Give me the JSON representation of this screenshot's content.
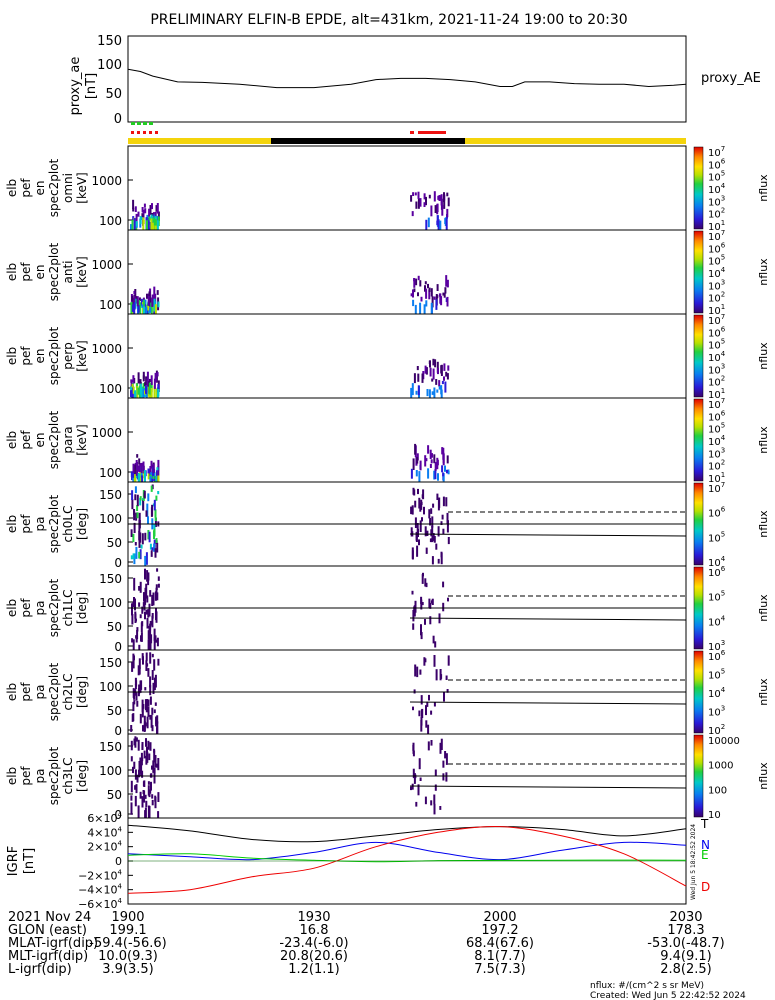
{
  "title": "PRELIMINARY ELFIN-B EPDE, alt=431km, 2021-11-24 19:00 to 20:30",
  "colors": {
    "trace": "#000000",
    "sci_zone_green": "#22cc22",
    "sci_zone_red": "#ee1111",
    "orbit_bar_yellow": "#f4d40c",
    "orbit_bar_black": "#000000",
    "bfield_T": "#000000",
    "bfield_N": "#0000ee",
    "bfield_E": "#00cc00",
    "bfield_D": "#ee0000"
  },
  "chart_data": [
    {
      "type": "line",
      "panel": "proxy_ae",
      "ylabel_lines": [
        "proxy_ae",
        "[nT]"
      ],
      "series_label": "proxy_AE",
      "ylim": [
        0,
        150
      ],
      "yticks": [
        "150",
        "100",
        "50",
        "0"
      ],
      "x_minutes": [
        0,
        2,
        4,
        8,
        12,
        18,
        24,
        30,
        36,
        40,
        44,
        48,
        52,
        56,
        60,
        62,
        64,
        68,
        72,
        76,
        80,
        84,
        88,
        90
      ],
      "values": [
        92,
        88,
        80,
        70,
        69,
        66,
        60,
        60,
        66,
        74,
        76,
        76,
        74,
        70,
        62,
        62,
        70,
        70,
        67,
        66,
        66,
        62,
        64,
        66
      ]
    },
    {
      "type": "heatmap",
      "panel": "omni",
      "ylabel_lines": [
        "elb",
        "pef",
        "en",
        "spec2plot",
        "omni",
        "[keV]"
      ],
      "yticks": [
        "1000",
        "100"
      ],
      "colorbar_label": "nflux",
      "colorbar_ticks": [
        "10^7",
        "10^6",
        "10^5",
        "10^4",
        "10^3",
        "10^2",
        "10^1"
      ]
    },
    {
      "type": "heatmap",
      "panel": "anti",
      "ylabel_lines": [
        "elb",
        "pef",
        "en",
        "spec2plot",
        "anti",
        "[keV]"
      ],
      "yticks": [
        "1000",
        "100"
      ],
      "colorbar_label": "nflux",
      "colorbar_ticks": [
        "10^7",
        "10^6",
        "10^5",
        "10^4",
        "10^3",
        "10^2",
        "10^1"
      ]
    },
    {
      "type": "heatmap",
      "panel": "perp",
      "ylabel_lines": [
        "elb",
        "pef",
        "en",
        "spec2plot",
        "perp",
        "[keV]"
      ],
      "yticks": [
        "1000",
        "100"
      ],
      "colorbar_label": "nflux",
      "colorbar_ticks": [
        "10^7",
        "10^6",
        "10^5",
        "10^4",
        "10^3",
        "10^2",
        "10^1"
      ]
    },
    {
      "type": "heatmap",
      "panel": "para",
      "ylabel_lines": [
        "elb",
        "pef",
        "en",
        "spec2plot",
        "para",
        "[keV]"
      ],
      "yticks": [
        "1000",
        "100"
      ],
      "colorbar_label": "nflux",
      "colorbar_ticks": [
        "10^7",
        "10^6",
        "10^5",
        "10^4",
        "10^3",
        "10^2",
        "10^1"
      ]
    },
    {
      "type": "heatmap",
      "panel": "ch0LC",
      "ylabel_lines": [
        "elb",
        "pef",
        "pa",
        "spec2plot",
        "ch0LC",
        "[deg]"
      ],
      "yticks": [
        "150",
        "100",
        "50",
        "0"
      ],
      "colorbar_label": "nflux",
      "colorbar_ticks": [
        "10^7",
        "10^6",
        "10^5",
        "10^4"
      ]
    },
    {
      "type": "heatmap",
      "panel": "ch1LC",
      "ylabel_lines": [
        "elb",
        "pef",
        "pa",
        "spec2plot",
        "ch1LC",
        "[deg]"
      ],
      "yticks": [
        "150",
        "100",
        "50",
        "0"
      ],
      "colorbar_label": "nflux",
      "colorbar_ticks": [
        "10^6",
        "10^5",
        "10^4",
        "10^3"
      ]
    },
    {
      "type": "heatmap",
      "panel": "ch2LC",
      "ylabel_lines": [
        "elb",
        "pef",
        "pa",
        "spec2plot",
        "ch2LC",
        "[deg]"
      ],
      "yticks": [
        "150",
        "100",
        "50",
        "0"
      ],
      "colorbar_label": "nflux",
      "colorbar_ticks": [
        "10^6",
        "10^5",
        "10^4",
        "10^3",
        "10^2"
      ]
    },
    {
      "type": "heatmap",
      "panel": "ch3LC",
      "ylabel_lines": [
        "elb",
        "pef",
        "pa",
        "spec2plot",
        "ch3LC",
        "[deg]"
      ],
      "yticks": [
        "150",
        "100",
        "50",
        "0"
      ],
      "colorbar_label": "nflux",
      "colorbar_ticks": [
        "10000",
        "1000",
        "100",
        "10"
      ]
    },
    {
      "type": "line",
      "panel": "igrf",
      "ylabel_lines": [
        "IGRF",
        "[nT]"
      ],
      "yticks": [
        "6×10^4",
        "4×10^4",
        "2×10^4",
        "0",
        "−2×10^4",
        "−4×10^4",
        "−6×10^4"
      ],
      "ylim": [
        -60000,
        60000
      ],
      "x_minutes": [
        0,
        10,
        20,
        30,
        40,
        50,
        60,
        70,
        80,
        90
      ],
      "series": [
        {
          "name": "T",
          "values": [
            50000,
            42000,
            30000,
            27000,
            35000,
            44000,
            48000,
            44000,
            35000,
            45000
          ]
        },
        {
          "name": "N",
          "values": [
            10000,
            6000,
            2000,
            12000,
            26000,
            12000,
            2000,
            15000,
            26000,
            22000
          ]
        },
        {
          "name": "E",
          "values": [
            8000,
            10000,
            4000,
            1000,
            -1000,
            500,
            800,
            1000,
            1200,
            1000
          ]
        },
        {
          "name": "D",
          "values": [
            -45000,
            -40000,
            -22000,
            -10000,
            20000,
            40000,
            48000,
            35000,
            10000,
            -35000
          ]
        }
      ]
    }
  ],
  "xaxis": {
    "tick_labels": [
      "1900",
      "1930",
      "2000",
      "2030"
    ],
    "date_label": "2021 Nov 24",
    "rows": [
      {
        "label": "GLON (east)",
        "values": [
          "199.1",
          "16.8",
          "197.2",
          "178.3"
        ]
      },
      {
        "label": "MLAT-igrf(dip)",
        "values": [
          "-59.4(-56.6)",
          "-23.4(-6.0)",
          "68.4(67.6)",
          "-53.0(-48.7)"
        ]
      },
      {
        "label": "MLT-igrf(dip)",
        "values": [
          "10.0(9.3)",
          "20.8(20.6)",
          "8.1(7.7)",
          "9.4(9.1)"
        ]
      },
      {
        "label": "L-igrf(dip)",
        "values": [
          "3.9(3.5)",
          "1.2(1.1)",
          "7.5(7.3)",
          "2.8(2.5)"
        ]
      }
    ]
  },
  "footer": {
    "units_note": "nflux: #/(cm^2 s sr MeV)",
    "created": "Created: Wed Jun  5 22:42:52 2024"
  },
  "side_stamp": "Wed Jun  5 18:42:52 2024"
}
